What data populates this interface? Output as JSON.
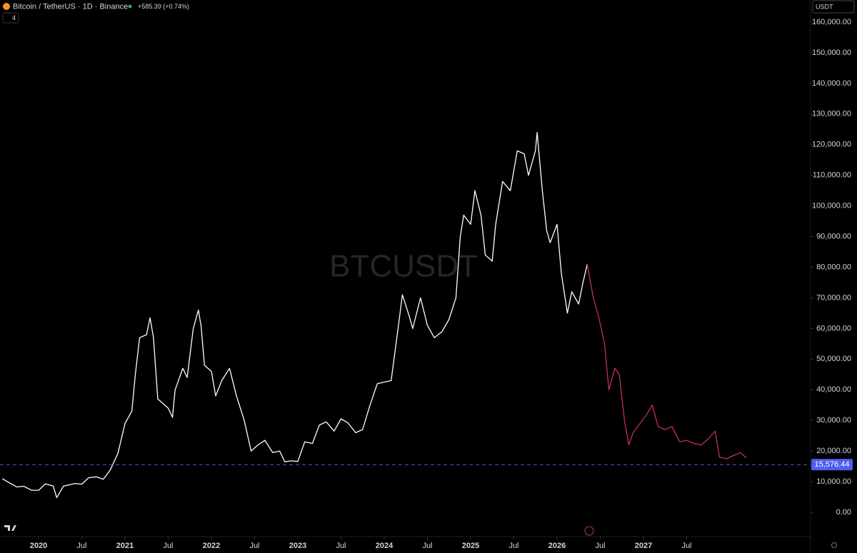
{
  "header": {
    "symbol": "Bitcoin / TetherUS · 1D · Binance",
    "change": "+585.39 (+0.74%)",
    "indicators": "4",
    "currency": "USDT"
  },
  "chart_data": {
    "type": "line",
    "watermark": "BTCUSDT",
    "xlim": [
      2019.554,
      2028.934
    ],
    "ylim": [
      0,
      160000
    ],
    "xticks": [
      {
        "value": 2020,
        "label": "2020"
      },
      {
        "value": 2020.5,
        "label": "Jul"
      },
      {
        "value": 2021,
        "label": "2021"
      },
      {
        "value": 2021.5,
        "label": "Jul"
      },
      {
        "value": 2022,
        "label": "2022"
      },
      {
        "value": 2022.5,
        "label": "Jul"
      },
      {
        "value": 2023,
        "label": "2023"
      },
      {
        "value": 2023.5,
        "label": "Jul"
      },
      {
        "value": 2024,
        "label": "2024"
      },
      {
        "value": 2024.5,
        "label": "Jul"
      },
      {
        "value": 2025,
        "label": "2025"
      },
      {
        "value": 2025.5,
        "label": "Jul"
      },
      {
        "value": 2026,
        "label": "2026"
      },
      {
        "value": 2026.5,
        "label": "Jul"
      },
      {
        "value": 2027,
        "label": "2027"
      },
      {
        "value": 2027.5,
        "label": "Jul"
      }
    ],
    "yticks": [
      {
        "value": 0,
        "label": "0.00"
      },
      {
        "value": 10000,
        "label": "10,000.00"
      },
      {
        "value": 20000,
        "label": "20,000.00"
      },
      {
        "value": 30000,
        "label": "30,000.00"
      },
      {
        "value": 40000,
        "label": "40,000.00"
      },
      {
        "value": 50000,
        "label": "50,000.00"
      },
      {
        "value": 60000,
        "label": "60,000.00"
      },
      {
        "value": 70000,
        "label": "70,000.00"
      },
      {
        "value": 80000,
        "label": "80,000.00"
      },
      {
        "value": 90000,
        "label": "90,000.00"
      },
      {
        "value": 100000,
        "label": "100,000.00"
      },
      {
        "value": 110000,
        "label": "110,000.00"
      },
      {
        "value": 120000,
        "label": "120,000.00"
      },
      {
        "value": 130000,
        "label": "130,000.00"
      },
      {
        "value": 140000,
        "label": "140,000.00"
      },
      {
        "value": 150000,
        "label": "150,000.00"
      },
      {
        "value": 160000,
        "label": "160,000.00"
      }
    ],
    "hline": {
      "value": 15576.44,
      "label": "15,576.44",
      "color": "#4d5ef0"
    },
    "series": [
      {
        "color": "#ffffff",
        "x": [
          2019.58,
          2019.67,
          2019.75,
          2019.83,
          2019.92,
          2020.0,
          2020.08,
          2020.17,
          2020.21,
          2020.29,
          2020.33,
          2020.42,
          2020.5,
          2020.58,
          2020.67,
          2020.75,
          2020.83,
          2020.92,
          2021.0,
          2021.08,
          2021.12,
          2021.17,
          2021.25,
          2021.29,
          2021.33,
          2021.38,
          2021.42,
          2021.5,
          2021.55,
          2021.58,
          2021.67,
          2021.72,
          2021.79,
          2021.85,
          2021.88,
          2021.92,
          2022.0,
          2022.05,
          2022.12,
          2022.21,
          2022.29,
          2022.38,
          2022.46,
          2022.54,
          2022.62,
          2022.71,
          2022.79,
          2022.85,
          2022.92,
          2023.0,
          2023.08,
          2023.17,
          2023.25,
          2023.33,
          2023.42,
          2023.5,
          2023.58,
          2023.67,
          2023.75,
          2023.83,
          2023.92,
          2024.0,
          2024.08,
          2024.17,
          2024.21,
          2024.29,
          2024.33,
          2024.42,
          2024.5,
          2024.58,
          2024.67,
          2024.75,
          2024.83,
          2024.88,
          2024.92,
          2025.0,
          2025.05,
          2025.12,
          2025.17,
          2025.25,
          2025.29,
          2025.37,
          2025.46,
          2025.54,
          2025.62,
          2025.67,
          2025.75,
          2025.77,
          2025.83,
          2025.88,
          2025.92,
          2026.0,
          2026.05,
          2026.12,
          2026.17,
          2026.25,
          2026.3,
          2026.35
        ],
        "values": [
          11000,
          9500,
          8300,
          8500,
          7200,
          7200,
          9300,
          8600,
          4800,
          8600,
          8800,
          9400,
          9200,
          11300,
          11600,
          10800,
          13800,
          19400,
          29000,
          33000,
          45000,
          57000,
          58000,
          63500,
          57000,
          37000,
          36000,
          34000,
          31000,
          40000,
          47000,
          44000,
          60000,
          66000,
          61000,
          48000,
          46000,
          38000,
          43000,
          47000,
          38000,
          30000,
          20000,
          22000,
          23500,
          19500,
          20000,
          16500,
          16800,
          16600,
          23000,
          22500,
          28500,
          29500,
          26500,
          30500,
          29200,
          26000,
          27000,
          34500,
          42000,
          42500,
          43000,
          62000,
          71000,
          64000,
          60000,
          70000,
          61000,
          57000,
          59000,
          63000,
          70000,
          90000,
          97000,
          94000,
          105000,
          97000,
          84000,
          82000,
          94000,
          108000,
          105000,
          118000,
          117000,
          110000,
          118000,
          124000,
          105000,
          92000,
          88000,
          94000,
          78000,
          65000,
          72000,
          68000,
          75000,
          81000
        ]
      },
      {
        "color": "#c2305a",
        "x": [
          2026.35,
          2026.42,
          2026.48,
          2026.55,
          2026.6,
          2026.67,
          2026.72,
          2026.78,
          2026.83,
          2026.88,
          2026.96,
          2027.04,
          2027.1,
          2027.17,
          2027.25,
          2027.33,
          2027.42,
          2027.5,
          2027.58,
          2027.67,
          2027.75,
          2027.83,
          2027.88,
          2027.96,
          2028.04,
          2028.12,
          2028.19
        ],
        "values": [
          81000,
          70000,
          64000,
          55000,
          40000,
          47000,
          45000,
          30000,
          22000,
          26000,
          29000,
          32000,
          35000,
          28000,
          27000,
          28000,
          23000,
          23500,
          22500,
          22000,
          24000,
          26500,
          18000,
          17500,
          18500,
          19500,
          17800
        ]
      }
    ]
  }
}
